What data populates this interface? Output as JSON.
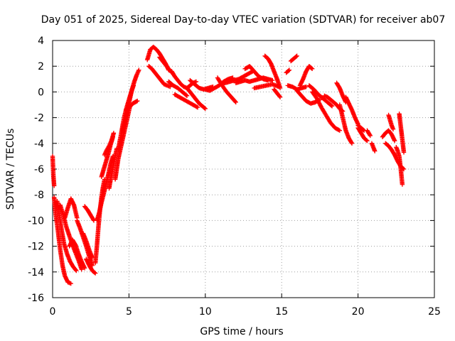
{
  "chart_data": {
    "type": "scatter",
    "title": "Day 051 of 2025, Sidereal Day-to-day VTEC variation (SDTVAR) for receiver ab07",
    "xlabel": "GPS time / hours",
    "ylabel": "SDTVAR / TECUs",
    "xlim": [
      0,
      25
    ],
    "ylim": [
      -16,
      4
    ],
    "xticks": [
      0,
      5,
      10,
      15,
      20,
      25
    ],
    "yticks": [
      -16,
      -14,
      -12,
      -10,
      -8,
      -6,
      -4,
      -2,
      0,
      2,
      4
    ],
    "grid": true,
    "marker": "plus",
    "color": "#ff0000",
    "series": [
      {
        "name": "track-01",
        "x": [
          0.0,
          0.05,
          0.1
        ],
        "y": [
          -5.0,
          -6.5,
          -7.3
        ]
      },
      {
        "name": "track-02",
        "x": [
          0.1,
          0.2,
          0.35,
          0.5,
          0.65,
          0.8,
          1.0,
          1.2
        ],
        "y": [
          -8.2,
          -9.5,
          -10.8,
          -12.3,
          -13.5,
          -14.3,
          -14.8,
          -14.9
        ]
      },
      {
        "name": "track-03",
        "x": [
          0.3,
          0.45,
          0.6,
          0.75,
          0.95,
          1.15,
          1.35,
          1.55
        ],
        "y": [
          -8.5,
          -9.7,
          -10.8,
          -11.8,
          -12.6,
          -13.2,
          -13.6,
          -13.9
        ]
      },
      {
        "name": "track-04",
        "x": [
          0.5,
          0.7,
          0.9,
          1.1,
          1.3,
          1.5,
          1.7,
          1.9
        ],
        "y": [
          -8.8,
          -9.6,
          -10.5,
          -11.2,
          -11.9,
          -12.5,
          -13.1,
          -13.8
        ]
      },
      {
        "name": "track-05",
        "x": [
          0.8,
          1.0,
          1.2,
          1.4,
          1.6
        ],
        "y": [
          -9.8,
          -9.0,
          -8.3,
          -8.8,
          -9.8
        ]
      },
      {
        "name": "track-06",
        "x": [
          1.1,
          1.3,
          1.5,
          1.7,
          1.9,
          2.1
        ],
        "y": [
          -12.0,
          -11.5,
          -11.9,
          -12.6,
          -13.2,
          -13.7
        ]
      },
      {
        "name": "track-07",
        "x": [
          1.6,
          1.8,
          2.0,
          2.2,
          2.4,
          2.6
        ],
        "y": [
          -10.0,
          -10.6,
          -11.3,
          -12.0,
          -12.8,
          -13.5
        ]
      },
      {
        "name": "track-08",
        "x": [
          2.0,
          2.2,
          2.4,
          2.6
        ],
        "y": [
          -11.0,
          -11.6,
          -12.3,
          -12.9
        ]
      },
      {
        "name": "track-09",
        "x": [
          2.2,
          2.4,
          2.6,
          2.8
        ],
        "y": [
          -13.0,
          -13.5,
          -13.9,
          -14.1
        ]
      },
      {
        "name": "track-10",
        "x": [
          2.1,
          2.3,
          2.5,
          2.7
        ],
        "y": [
          -8.9,
          -9.2,
          -9.6,
          -10.0
        ]
      },
      {
        "name": "track-11",
        "x": [
          2.8,
          2.9,
          3.0,
          3.1,
          3.2,
          3.3,
          3.4
        ],
        "y": [
          -13.3,
          -12.0,
          -10.5,
          -9.2,
          -8.2,
          -7.4,
          -6.8
        ]
      },
      {
        "name": "track-12",
        "x": [
          2.9,
          3.05,
          3.2,
          3.35,
          3.5,
          3.65,
          3.8,
          3.95
        ],
        "y": [
          -10.0,
          -9.4,
          -8.6,
          -7.9,
          -7.2,
          -6.4,
          -5.6,
          -5.0
        ]
      },
      {
        "name": "track-13",
        "x": [
          3.2,
          3.35,
          3.5,
          3.65,
          3.8,
          3.95
        ],
        "y": [
          -6.6,
          -6.0,
          -5.4,
          -4.8,
          -4.1,
          -3.5
        ]
      },
      {
        "name": "track-14",
        "x": [
          3.4,
          3.55,
          3.7,
          3.85,
          4.0
        ],
        "y": [
          -4.9,
          -4.5,
          -4.2,
          -3.8,
          -3.2
        ]
      },
      {
        "name": "track-15",
        "x": [
          3.7,
          3.8,
          3.9,
          4.0,
          4.1,
          4.2
        ],
        "y": [
          -7.5,
          -6.8,
          -6.2,
          -5.6,
          -5.0,
          -4.4
        ]
      },
      {
        "name": "track-16",
        "x": [
          4.1,
          4.2,
          4.3,
          4.45,
          4.6,
          4.75,
          4.9,
          5.05
        ],
        "y": [
          -6.8,
          -6.0,
          -5.2,
          -4.4,
          -3.6,
          -2.8,
          -2.0,
          -1.2
        ]
      },
      {
        "name": "track-17",
        "x": [
          4.3,
          4.4,
          4.5,
          4.6,
          4.7,
          4.85,
          5.0,
          5.15,
          5.3
        ],
        "y": [
          -4.5,
          -3.8,
          -3.2,
          -2.5,
          -1.9,
          -1.2,
          -0.6,
          0.0,
          0.5
        ]
      },
      {
        "name": "track-18",
        "x": [
          4.6,
          4.75,
          4.9,
          5.05,
          5.2,
          5.35,
          5.5,
          5.65
        ],
        "y": [
          -3.0,
          -2.2,
          -1.4,
          -0.6,
          0.2,
          0.8,
          1.3,
          1.7
        ]
      },
      {
        "name": "track-19",
        "x": [
          4.8,
          4.95,
          5.1,
          5.25,
          5.4,
          5.55
        ],
        "y": [
          -1.4,
          -1.2,
          -1.1,
          -0.9,
          -0.8,
          -0.7
        ]
      },
      {
        "name": "track-20",
        "x": [
          6.2,
          6.4,
          6.6,
          6.8,
          7.0,
          7.2,
          7.4,
          7.6
        ],
        "y": [
          2.5,
          3.3,
          3.5,
          3.3,
          3.0,
          2.6,
          2.2,
          1.7
        ]
      },
      {
        "name": "track-21",
        "x": [
          6.3,
          6.5,
          6.7,
          6.9,
          7.1,
          7.3,
          7.5,
          7.7
        ],
        "y": [
          2.0,
          1.8,
          1.5,
          1.2,
          0.9,
          0.6,
          0.5,
          0.4
        ]
      },
      {
        "name": "track-22",
        "x": [
          7.0,
          7.2,
          7.4,
          7.6,
          7.8
        ],
        "y": [
          2.7,
          2.4,
          2.1,
          1.8,
          1.5
        ]
      },
      {
        "name": "track-23",
        "x": [
          7.8,
          8.0,
          8.2,
          8.4,
          8.6,
          8.8,
          9.0,
          9.2,
          9.4
        ],
        "y": [
          1.6,
          1.2,
          0.9,
          0.6,
          0.4,
          0.3,
          0.5,
          0.7,
          0.8
        ]
      },
      {
        "name": "track-24",
        "x": [
          7.6,
          7.9,
          8.2,
          8.5,
          8.8
        ],
        "y": [
          0.8,
          0.5,
          0.3,
          0.0,
          -0.3
        ]
      },
      {
        "name": "track-25",
        "x": [
          8.0,
          8.3,
          8.6,
          8.9,
          9.2,
          9.5
        ],
        "y": [
          -0.2,
          -0.4,
          -0.6,
          -0.8,
          -1.0,
          -1.2
        ]
      },
      {
        "name": "track-26",
        "x": [
          8.8,
          9.0,
          9.2,
          9.4,
          9.6,
          9.8,
          10.0
        ],
        "y": [
          0.3,
          0.0,
          -0.3,
          -0.6,
          -0.9,
          -1.1,
          -1.3
        ]
      },
      {
        "name": "track-27",
        "x": [
          9.0,
          9.3,
          9.6,
          9.9,
          10.2,
          10.5
        ],
        "y": [
          0.9,
          0.6,
          0.3,
          0.2,
          0.3,
          0.4
        ]
      },
      {
        "name": "track-28",
        "x": [
          10.0,
          10.3,
          10.6,
          10.9,
          11.2,
          11.5,
          11.8
        ],
        "y": [
          0.2,
          0.1,
          0.3,
          0.5,
          0.8,
          1.0,
          1.1
        ]
      },
      {
        "name": "track-29",
        "x": [
          10.8,
          11.1,
          11.4,
          11.7,
          12.0
        ],
        "y": [
          1.1,
          0.5,
          0.0,
          -0.4,
          -0.8
        ]
      },
      {
        "name": "track-30",
        "x": [
          11.0,
          11.3,
          11.6,
          11.9,
          12.2,
          12.5,
          12.8,
          13.1
        ],
        "y": [
          0.6,
          0.7,
          0.8,
          0.9,
          1.0,
          1.2,
          1.4,
          1.6
        ]
      },
      {
        "name": "track-31",
        "x": [
          12.0,
          12.3,
          12.6,
          12.9,
          13.2,
          13.5,
          13.8,
          14.1,
          14.4
        ],
        "y": [
          0.7,
          0.8,
          0.9,
          0.8,
          0.9,
          1.0,
          1.1,
          1.0,
          0.9
        ]
      },
      {
        "name": "track-32",
        "x": [
          12.6,
          12.9,
          13.2,
          13.5,
          13.8,
          14.1
        ],
        "y": [
          1.8,
          2.0,
          1.6,
          1.2,
          1.0,
          0.9
        ]
      },
      {
        "name": "track-33",
        "x": [
          13.9,
          14.1,
          14.3,
          14.5,
          14.7,
          14.9
        ],
        "y": [
          2.8,
          2.6,
          2.2,
          1.6,
          1.0,
          0.3
        ]
      },
      {
        "name": "track-34",
        "x": [
          13.2,
          13.6,
          14.0,
          14.4,
          14.8
        ],
        "y": [
          0.3,
          0.4,
          0.5,
          0.6,
          0.4
        ]
      },
      {
        "name": "track-35",
        "x": [
          14.5,
          14.7,
          14.9
        ],
        "y": [
          0.2,
          -0.1,
          -0.4
        ]
      },
      {
        "name": "track-36",
        "x": [
          15.6,
          15.8,
          16.0
        ],
        "y": [
          2.4,
          2.6,
          2.8
        ]
      },
      {
        "name": "track-37",
        "x": [
          15.3,
          15.4,
          15.5
        ],
        "y": [
          1.5,
          1.6,
          1.7
        ]
      },
      {
        "name": "track-38",
        "x": [
          15.4,
          15.7,
          16.0,
          16.3,
          16.6
        ],
        "y": [
          0.5,
          0.4,
          0.2,
          0.3,
          0.4
        ]
      },
      {
        "name": "track-39",
        "x": [
          16.2,
          16.4,
          16.6,
          16.8,
          17.0
        ],
        "y": [
          0.5,
          1.0,
          1.6,
          2.0,
          1.8
        ]
      },
      {
        "name": "track-40",
        "x": [
          16.0,
          16.3,
          16.6,
          16.9,
          17.2,
          17.5
        ],
        "y": [
          0.1,
          -0.3,
          -0.7,
          -0.9,
          -0.8,
          -0.6
        ]
      },
      {
        "name": "track-41",
        "x": [
          16.8,
          17.1,
          17.4,
          17.7,
          18.0,
          18.3
        ],
        "y": [
          0.5,
          0.2,
          -0.2,
          -0.5,
          -0.8,
          -1.1
        ]
      },
      {
        "name": "track-42",
        "x": [
          17.0,
          17.3,
          17.6,
          17.9,
          18.2,
          18.5,
          18.8
        ],
        "y": [
          0.0,
          -0.5,
          -1.2,
          -1.8,
          -2.4,
          -2.8,
          -3.0
        ]
      },
      {
        "name": "track-43",
        "x": [
          17.8,
          18.0,
          18.2,
          18.4,
          18.6,
          18.8,
          19.0
        ],
        "y": [
          -0.3,
          -0.4,
          -0.6,
          -0.8,
          -1.0,
          -1.3,
          -1.5
        ]
      },
      {
        "name": "track-44",
        "x": [
          18.6,
          18.8,
          19.0,
          19.2
        ],
        "y": [
          0.7,
          0.3,
          -0.3,
          -0.8
        ]
      },
      {
        "name": "track-45",
        "x": [
          18.8,
          19.0,
          19.2,
          19.4,
          19.6
        ],
        "y": [
          -1.0,
          -2.0,
          -3.0,
          -3.6,
          -4.0
        ]
      },
      {
        "name": "track-46",
        "x": [
          19.2,
          19.4,
          19.6,
          19.8,
          20.0
        ],
        "y": [
          -0.4,
          -0.9,
          -1.4,
          -2.0,
          -2.5
        ]
      },
      {
        "name": "track-47",
        "x": [
          20.0,
          20.2,
          20.4
        ],
        "y": [
          -2.6,
          -2.8,
          -3.0
        ]
      },
      {
        "name": "track-48",
        "x": [
          20.0,
          20.2,
          20.4,
          20.6
        ],
        "y": [
          -2.8,
          -3.2,
          -3.6,
          -3.8
        ]
      },
      {
        "name": "track-49",
        "x": [
          20.6,
          20.7,
          20.8
        ],
        "y": [
          -3.0,
          -3.2,
          -3.4
        ]
      },
      {
        "name": "track-50",
        "x": [
          20.9,
          21.0,
          21.1
        ],
        "y": [
          -4.0,
          -4.3,
          -4.6
        ]
      },
      {
        "name": "track-51",
        "x": [
          21.6,
          21.8,
          22.0,
          22.2,
          22.4
        ],
        "y": [
          -3.5,
          -3.2,
          -3.0,
          -3.3,
          -3.8
        ]
      },
      {
        "name": "track-52",
        "x": [
          21.8,
          22.0,
          22.2,
          22.4,
          22.6,
          22.8,
          23.0
        ],
        "y": [
          -4.0,
          -4.2,
          -4.5,
          -4.9,
          -5.4,
          -5.8,
          -6.0
        ]
      },
      {
        "name": "track-53",
        "x": [
          22.0,
          22.1,
          22.2,
          22.3
        ],
        "y": [
          -1.8,
          -2.2,
          -2.6,
          -2.9
        ]
      },
      {
        "name": "track-54",
        "x": [
          22.5,
          22.6,
          22.7,
          22.8,
          22.9
        ],
        "y": [
          -4.3,
          -4.6,
          -5.0,
          -6.0,
          -7.2
        ]
      },
      {
        "name": "track-55",
        "x": [
          22.7,
          22.8,
          22.9,
          23.0
        ],
        "y": [
          -1.7,
          -2.7,
          -3.7,
          -4.7
        ]
      }
    ]
  }
}
